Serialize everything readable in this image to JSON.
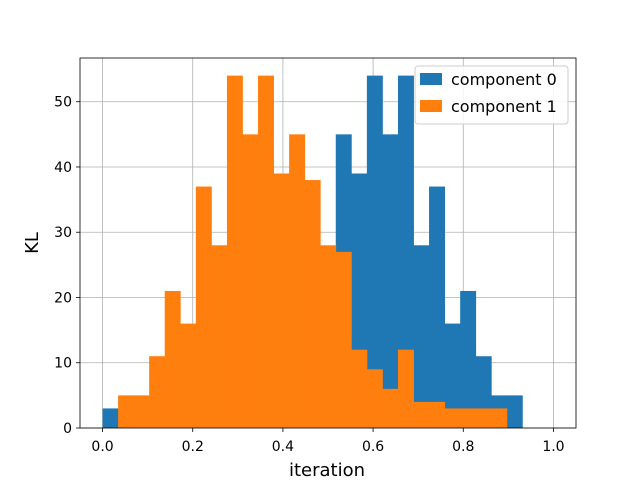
{
  "chart_data": {
    "type": "bar",
    "subtype": "histogram",
    "title": "",
    "xlabel": "iteration",
    "ylabel": "KL",
    "xlim": [
      -0.05,
      1.05
    ],
    "ylim": [
      0,
      56.7
    ],
    "grid": true,
    "legend_position": "top-right",
    "bin_edges": [
      0.0,
      0.0345,
      0.069,
      0.1034,
      0.1379,
      0.1724,
      0.2069,
      0.2414,
      0.2759,
      0.3103,
      0.3448,
      0.3793,
      0.4138,
      0.4483,
      0.4828,
      0.5172,
      0.5517,
      0.5862,
      0.6207,
      0.6552,
      0.6897,
      0.7241,
      0.7586,
      0.7931,
      0.8276,
      0.8621,
      0.8966,
      0.931,
      0.9655,
      1.0
    ],
    "x_ticks": [
      0.0,
      0.2,
      0.4,
      0.6,
      0.8,
      1.0
    ],
    "x_tick_labels": [
      "0.0",
      "0.2",
      "0.4",
      "0.6",
      "0.8",
      "1.0"
    ],
    "y_ticks": [
      0,
      10,
      20,
      30,
      40,
      50
    ],
    "y_tick_labels": [
      "0",
      "10",
      "20",
      "30",
      "40",
      "50"
    ],
    "series": [
      {
        "name": "component 0",
        "color": "#1f77b4",
        "values": [
          3,
          0,
          0,
          0,
          0,
          0,
          0,
          0,
          0,
          0,
          0,
          0,
          0,
          0,
          0,
          45,
          39,
          54,
          45,
          54,
          28,
          37,
          16,
          21,
          11,
          5,
          5,
          0,
          0
        ]
      },
      {
        "name": "component 1",
        "color": "#ff7f0e",
        "values": [
          0,
          5,
          5,
          11,
          21,
          16,
          37,
          28,
          54,
          45,
          54,
          39,
          45,
          38,
          28,
          27,
          12,
          9,
          6,
          12,
          4,
          4,
          3,
          3,
          3,
          3,
          0,
          0,
          0
        ]
      }
    ]
  }
}
